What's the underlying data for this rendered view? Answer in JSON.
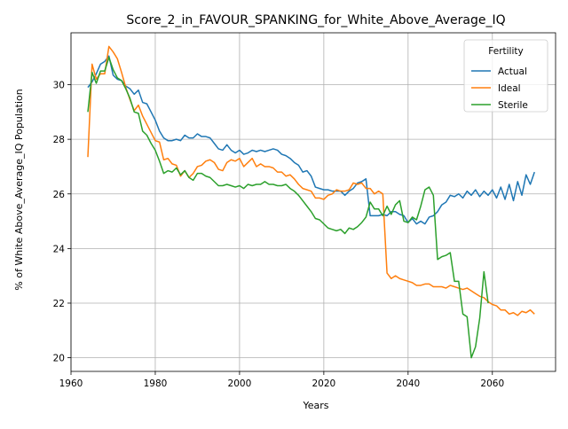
{
  "chart_data": {
    "type": "line",
    "title": "Score_2_in_FAVOUR_SPANKING_for_White_Above_Average_IQ",
    "xlabel": "Years",
    "ylabel": "% of White Above_Average_IQ Population",
    "xlim": [
      1960,
      2075
    ],
    "ylim": [
      19.5,
      31.9
    ],
    "xticks": [
      1960,
      1980,
      2000,
      2020,
      2040,
      2060
    ],
    "yticks": [
      20,
      22,
      24,
      26,
      28,
      30
    ],
    "grid": true,
    "legend": {
      "title": "Fertility",
      "position": "top-right"
    },
    "series": [
      {
        "name": "Actual",
        "color": "#1f77b4",
        "points": [
          [
            1964,
            29.9
          ],
          [
            1965,
            30.1
          ],
          [
            1966,
            30.4
          ],
          [
            1967,
            30.75
          ],
          [
            1968,
            30.85
          ],
          [
            1969,
            31.05
          ],
          [
            1970,
            30.35
          ],
          [
            1971,
            30.2
          ],
          [
            1972,
            30.15
          ],
          [
            1973,
            29.95
          ],
          [
            1974,
            29.85
          ],
          [
            1975,
            29.65
          ],
          [
            1976,
            29.8
          ],
          [
            1977,
            29.35
          ],
          [
            1978,
            29.3
          ],
          [
            1979,
            29.0
          ],
          [
            1980,
            28.7
          ],
          [
            1981,
            28.3
          ],
          [
            1982,
            28.05
          ],
          [
            1983,
            27.95
          ],
          [
            1984,
            27.95
          ],
          [
            1985,
            28.0
          ],
          [
            1986,
            27.95
          ],
          [
            1987,
            28.15
          ],
          [
            1988,
            28.05
          ],
          [
            1989,
            28.05
          ],
          [
            1990,
            28.2
          ],
          [
            1991,
            28.1
          ],
          [
            1992,
            28.1
          ],
          [
            1993,
            28.05
          ],
          [
            1994,
            27.85
          ],
          [
            1995,
            27.65
          ],
          [
            1996,
            27.6
          ],
          [
            1997,
            27.8
          ],
          [
            1998,
            27.6
          ],
          [
            1999,
            27.5
          ],
          [
            2000,
            27.6
          ],
          [
            2001,
            27.45
          ],
          [
            2002,
            27.5
          ],
          [
            2003,
            27.6
          ],
          [
            2004,
            27.55
          ],
          [
            2005,
            27.6
          ],
          [
            2006,
            27.55
          ],
          [
            2007,
            27.6
          ],
          [
            2008,
            27.65
          ],
          [
            2009,
            27.6
          ],
          [
            2010,
            27.45
          ],
          [
            2011,
            27.4
          ],
          [
            2012,
            27.3
          ],
          [
            2013,
            27.15
          ],
          [
            2014,
            27.05
          ],
          [
            2015,
            26.8
          ],
          [
            2016,
            26.85
          ],
          [
            2017,
            26.65
          ],
          [
            2018,
            26.25
          ],
          [
            2019,
            26.2
          ],
          [
            2020,
            26.15
          ],
          [
            2021,
            26.15
          ],
          [
            2022,
            26.1
          ],
          [
            2023,
            26.1
          ],
          [
            2024,
            26.1
          ],
          [
            2025,
            25.95
          ],
          [
            2026,
            26.1
          ],
          [
            2027,
            26.2
          ],
          [
            2028,
            26.4
          ],
          [
            2029,
            26.45
          ],
          [
            2030,
            26.55
          ],
          [
            2031,
            25.2
          ],
          [
            2032,
            25.2
          ],
          [
            2033,
            25.2
          ],
          [
            2034,
            25.25
          ],
          [
            2035,
            25.2
          ],
          [
            2036,
            25.35
          ],
          [
            2037,
            25.35
          ],
          [
            2038,
            25.25
          ],
          [
            2039,
            25.2
          ],
          [
            2040,
            24.95
          ],
          [
            2041,
            25.1
          ],
          [
            2042,
            24.9
          ],
          [
            2043,
            25.0
          ],
          [
            2044,
            24.9
          ],
          [
            2045,
            25.15
          ],
          [
            2046,
            25.2
          ],
          [
            2047,
            25.35
          ],
          [
            2048,
            25.6
          ],
          [
            2049,
            25.7
          ],
          [
            2050,
            25.95
          ],
          [
            2051,
            25.9
          ],
          [
            2052,
            26.0
          ],
          [
            2053,
            25.85
          ],
          [
            2054,
            26.1
          ],
          [
            2055,
            25.95
          ],
          [
            2056,
            26.15
          ],
          [
            2057,
            25.9
          ],
          [
            2058,
            26.1
          ],
          [
            2059,
            25.95
          ],
          [
            2060,
            26.15
          ],
          [
            2061,
            25.85
          ],
          [
            2062,
            26.25
          ],
          [
            2063,
            25.8
          ],
          [
            2064,
            26.35
          ],
          [
            2065,
            25.75
          ],
          [
            2066,
            26.45
          ],
          [
            2067,
            25.95
          ],
          [
            2068,
            26.7
          ],
          [
            2069,
            26.35
          ],
          [
            2070,
            26.8
          ]
        ]
      },
      {
        "name": "Ideal",
        "color": "#ff7f0e",
        "points": [
          [
            1964,
            27.35
          ],
          [
            1965,
            30.75
          ],
          [
            1966,
            30.2
          ],
          [
            1967,
            30.4
          ],
          [
            1968,
            30.4
          ],
          [
            1969,
            31.4
          ],
          [
            1970,
            31.2
          ],
          [
            1971,
            30.95
          ],
          [
            1972,
            30.45
          ],
          [
            1973,
            29.9
          ],
          [
            1974,
            29.45
          ],
          [
            1975,
            29.05
          ],
          [
            1976,
            29.25
          ],
          [
            1977,
            28.85
          ],
          [
            1978,
            28.55
          ],
          [
            1979,
            28.25
          ],
          [
            1980,
            27.95
          ],
          [
            1981,
            27.9
          ],
          [
            1982,
            27.25
          ],
          [
            1983,
            27.3
          ],
          [
            1984,
            27.1
          ],
          [
            1985,
            27.05
          ],
          [
            1986,
            26.65
          ],
          [
            1987,
            26.85
          ],
          [
            1988,
            26.6
          ],
          [
            1989,
            26.75
          ],
          [
            1990,
            27.0
          ],
          [
            1991,
            27.05
          ],
          [
            1992,
            27.2
          ],
          [
            1993,
            27.25
          ],
          [
            1994,
            27.15
          ],
          [
            1995,
            26.9
          ],
          [
            1996,
            26.85
          ],
          [
            1997,
            27.15
          ],
          [
            1998,
            27.25
          ],
          [
            1999,
            27.2
          ],
          [
            2000,
            27.3
          ],
          [
            2001,
            27.0
          ],
          [
            2002,
            27.15
          ],
          [
            2003,
            27.3
          ],
          [
            2004,
            27.0
          ],
          [
            2005,
            27.1
          ],
          [
            2006,
            27.0
          ],
          [
            2007,
            27.0
          ],
          [
            2008,
            26.95
          ],
          [
            2009,
            26.8
          ],
          [
            2010,
            26.8
          ],
          [
            2011,
            26.65
          ],
          [
            2012,
            26.7
          ],
          [
            2013,
            26.55
          ],
          [
            2014,
            26.35
          ],
          [
            2015,
            26.2
          ],
          [
            2016,
            26.15
          ],
          [
            2017,
            26.1
          ],
          [
            2018,
            25.85
          ],
          [
            2019,
            25.85
          ],
          [
            2020,
            25.8
          ],
          [
            2021,
            25.95
          ],
          [
            2022,
            26.0
          ],
          [
            2023,
            26.15
          ],
          [
            2024,
            26.1
          ],
          [
            2025,
            26.1
          ],
          [
            2026,
            26.15
          ],
          [
            2027,
            26.4
          ],
          [
            2028,
            26.35
          ],
          [
            2029,
            26.4
          ],
          [
            2030,
            26.2
          ],
          [
            2031,
            26.2
          ],
          [
            2032,
            26.0
          ],
          [
            2033,
            26.1
          ],
          [
            2034,
            26.0
          ],
          [
            2035,
            23.1
          ],
          [
            2036,
            22.9
          ],
          [
            2037,
            23.0
          ],
          [
            2038,
            22.9
          ],
          [
            2039,
            22.85
          ],
          [
            2040,
            22.8
          ],
          [
            2041,
            22.75
          ],
          [
            2042,
            22.65
          ],
          [
            2043,
            22.65
          ],
          [
            2044,
            22.7
          ],
          [
            2045,
            22.7
          ],
          [
            2046,
            22.6
          ],
          [
            2047,
            22.6
          ],
          [
            2048,
            22.6
          ],
          [
            2049,
            22.55
          ],
          [
            2050,
            22.65
          ],
          [
            2051,
            22.6
          ],
          [
            2052,
            22.55
          ],
          [
            2053,
            22.5
          ],
          [
            2054,
            22.55
          ],
          [
            2055,
            22.45
          ],
          [
            2056,
            22.35
          ],
          [
            2057,
            22.25
          ],
          [
            2058,
            22.2
          ],
          [
            2059,
            22.05
          ],
          [
            2060,
            21.95
          ],
          [
            2061,
            21.9
          ],
          [
            2062,
            21.75
          ],
          [
            2063,
            21.75
          ],
          [
            2064,
            21.6
          ],
          [
            2065,
            21.65
          ],
          [
            2066,
            21.55
          ],
          [
            2067,
            21.7
          ],
          [
            2068,
            21.65
          ],
          [
            2069,
            21.75
          ],
          [
            2070,
            21.6
          ]
        ]
      },
      {
        "name": "Sterile",
        "color": "#2ca02c",
        "points": [
          [
            1964,
            29.0
          ],
          [
            1965,
            30.45
          ],
          [
            1966,
            30.05
          ],
          [
            1967,
            30.5
          ],
          [
            1968,
            30.5
          ],
          [
            1969,
            31.0
          ],
          [
            1970,
            30.55
          ],
          [
            1971,
            30.25
          ],
          [
            1972,
            30.15
          ],
          [
            1973,
            29.85
          ],
          [
            1974,
            29.5
          ],
          [
            1975,
            29.0
          ],
          [
            1976,
            28.95
          ],
          [
            1977,
            28.3
          ],
          [
            1978,
            28.15
          ],
          [
            1979,
            27.85
          ],
          [
            1980,
            27.6
          ],
          [
            1981,
            27.2
          ],
          [
            1982,
            26.75
          ],
          [
            1983,
            26.85
          ],
          [
            1984,
            26.8
          ],
          [
            1985,
            26.95
          ],
          [
            1986,
            26.7
          ],
          [
            1987,
            26.85
          ],
          [
            1988,
            26.6
          ],
          [
            1989,
            26.5
          ],
          [
            1990,
            26.75
          ],
          [
            1991,
            26.75
          ],
          [
            1992,
            26.65
          ],
          [
            1993,
            26.6
          ],
          [
            1994,
            26.45
          ],
          [
            1995,
            26.3
          ],
          [
            1996,
            26.3
          ],
          [
            1997,
            26.35
          ],
          [
            1998,
            26.3
          ],
          [
            1999,
            26.25
          ],
          [
            2000,
            26.3
          ],
          [
            2001,
            26.2
          ],
          [
            2002,
            26.35
          ],
          [
            2003,
            26.3
          ],
          [
            2004,
            26.35
          ],
          [
            2005,
            26.35
          ],
          [
            2006,
            26.45
          ],
          [
            2007,
            26.35
          ],
          [
            2008,
            26.35
          ],
          [
            2009,
            26.3
          ],
          [
            2010,
            26.3
          ],
          [
            2011,
            26.35
          ],
          [
            2012,
            26.2
          ],
          [
            2013,
            26.1
          ],
          [
            2014,
            25.95
          ],
          [
            2015,
            25.75
          ],
          [
            2016,
            25.55
          ],
          [
            2017,
            25.35
          ],
          [
            2018,
            25.1
          ],
          [
            2019,
            25.05
          ],
          [
            2020,
            24.9
          ],
          [
            2021,
            24.75
          ],
          [
            2022,
            24.7
          ],
          [
            2023,
            24.65
          ],
          [
            2024,
            24.7
          ],
          [
            2025,
            24.55
          ],
          [
            2026,
            24.75
          ],
          [
            2027,
            24.7
          ],
          [
            2028,
            24.8
          ],
          [
            2029,
            24.95
          ],
          [
            2030,
            25.15
          ],
          [
            2031,
            25.7
          ],
          [
            2032,
            25.45
          ],
          [
            2033,
            25.45
          ],
          [
            2034,
            25.2
          ],
          [
            2035,
            25.55
          ],
          [
            2036,
            25.25
          ],
          [
            2037,
            25.6
          ],
          [
            2038,
            25.75
          ],
          [
            2039,
            25.0
          ],
          [
            2040,
            24.95
          ],
          [
            2041,
            25.15
          ],
          [
            2042,
            25.05
          ],
          [
            2043,
            25.55
          ],
          [
            2044,
            26.15
          ],
          [
            2045,
            26.25
          ],
          [
            2046,
            25.95
          ],
          [
            2047,
            23.6
          ],
          [
            2048,
            23.7
          ],
          [
            2049,
            23.75
          ],
          [
            2050,
            23.85
          ],
          [
            2051,
            22.8
          ],
          [
            2052,
            22.8
          ],
          [
            2053,
            21.6
          ],
          [
            2054,
            21.5
          ],
          [
            2055,
            20.0
          ],
          [
            2056,
            20.4
          ],
          [
            2057,
            21.45
          ],
          [
            2058,
            23.15
          ],
          [
            2059,
            22.0
          ]
        ]
      }
    ]
  }
}
